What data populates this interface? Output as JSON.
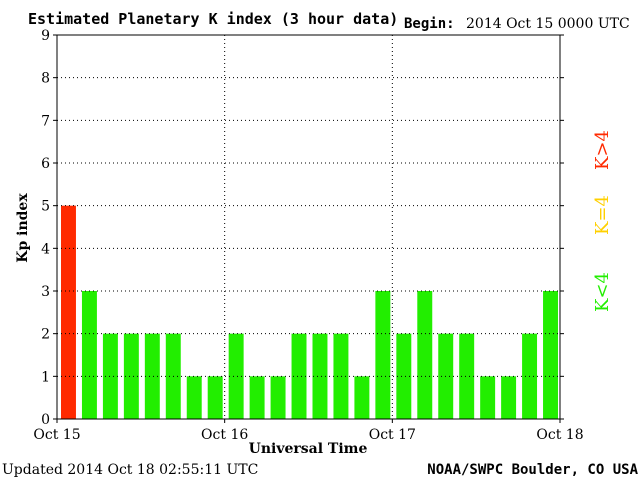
{
  "header": {
    "title": "Estimated Planetary K index (3 hour data)",
    "begin_label": "Begin:",
    "begin_value": "2014 Oct 15 0000 UTC"
  },
  "footer": {
    "updated": "Updated 2014 Oct 18 02:55:11 UTC",
    "credit": "NOAA/SWPC Boulder, CO USA"
  },
  "legend": {
    "high": {
      "label": "K>4",
      "color": "#ff2a00"
    },
    "equal": {
      "label": "K=4",
      "color": "#ffd000"
    },
    "low": {
      "label": "K<4",
      "color": "#22ee00"
    }
  },
  "chart_data": {
    "type": "bar",
    "title": "Estimated Planetary K index (3 hour data)",
    "xlabel": "Universal Time",
    "ylabel": "Kp index",
    "ylim": [
      0,
      9
    ],
    "yticks": [
      0,
      1,
      2,
      3,
      4,
      5,
      6,
      7,
      8,
      9
    ],
    "xtick_labels": [
      "Oct 15",
      "Oct 16",
      "Oct 17",
      "Oct 18"
    ],
    "bins_per_day": 8,
    "values": [
      5,
      3,
      2,
      2,
      2,
      2,
      1,
      1,
      2,
      1,
      1,
      2,
      2,
      2,
      1,
      3,
      2,
      3,
      2,
      2,
      1,
      1,
      2,
      3
    ],
    "grid": true,
    "colors": {
      "above": "#ff2a00",
      "equal": "#ffd000",
      "below": "#22ee00"
    }
  }
}
